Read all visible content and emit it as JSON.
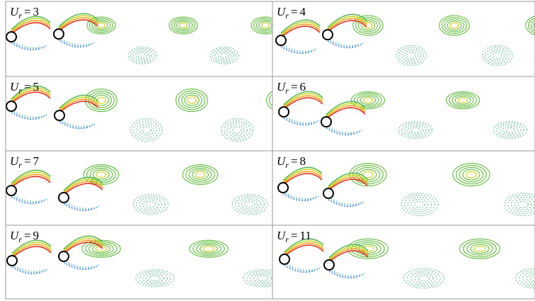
{
  "panels": [
    {
      "variable": "U",
      "subscript": "r",
      "sign": "=",
      "value": 3
    },
    {
      "variable": "U",
      "subscript": "r",
      "sign": "=",
      "value": 4
    },
    {
      "variable": "U",
      "subscript": "r",
      "sign": "=",
      "value": 5
    },
    {
      "variable": "U",
      "subscript": "r",
      "sign": "=",
      "value": 6
    },
    {
      "variable": "U",
      "subscript": "r",
      "sign": "=",
      "value": 7
    },
    {
      "variable": "U",
      "subscript": "r",
      "sign": "=",
      "value": 8
    },
    {
      "variable": "U",
      "subscript": "r",
      "sign": "=",
      "value": 9
    },
    {
      "variable": "U",
      "subscript": "r",
      "sign": "=",
      "value": 11
    }
  ]
}
